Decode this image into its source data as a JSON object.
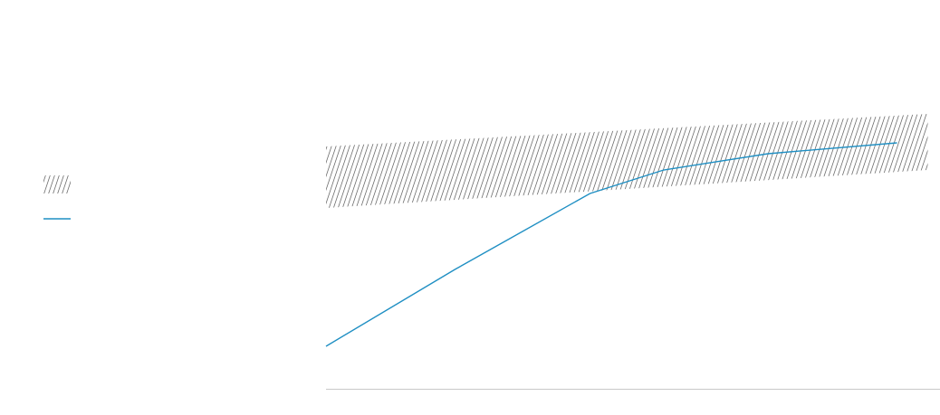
{
  "chart_data": {
    "type": "line",
    "xlim": [
      0,
      100
    ],
    "ylim": [
      0,
      100
    ],
    "series": [
      {
        "type": "band",
        "color": "#707070",
        "x": [
          0,
          98
        ],
        "low": [
          50,
          60.5
        ],
        "high": [
          67,
          76
        ]
      },
      {
        "type": "line",
        "color": "#1f8fc3",
        "x": [
          0,
          21,
          43,
          55,
          72,
          93
        ],
        "values": [
          11.75,
          33,
          54,
          60.5,
          65,
          68
        ]
      }
    ]
  }
}
